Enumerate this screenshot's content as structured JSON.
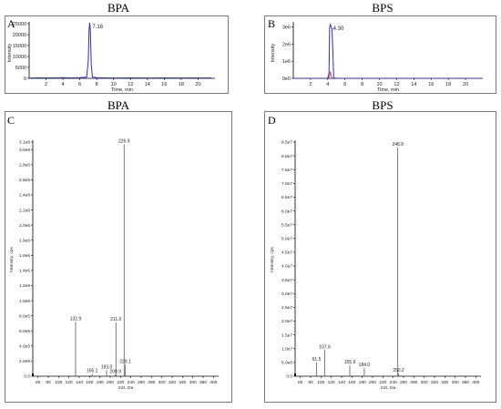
{
  "panels": {
    "A": {
      "letter": "A",
      "heading": "BPA"
    },
    "B": {
      "letter": "B",
      "heading": "BPS"
    },
    "C": {
      "letter": "C",
      "heading": "BPA"
    },
    "D": {
      "letter": "D",
      "heading": "BPS"
    }
  },
  "colors": {
    "trace": "#2b2bd6",
    "frame": "#7a7a7a",
    "axis": "#000000",
    "spectrum": "#444444"
  },
  "chart_data": [
    {
      "id": "A",
      "type": "line",
      "xlabel": "Time, min",
      "ylabel": "Intensity",
      "xlim": [
        0,
        22
      ],
      "ylim": [
        0,
        25000
      ],
      "xticks": [
        2,
        4,
        6,
        8,
        10,
        12,
        14,
        16,
        18,
        20
      ],
      "yticks": [
        0,
        5000,
        10000,
        15000,
        20000,
        25000
      ],
      "yticklabels": [
        "0",
        "5000",
        "10000",
        "15000",
        "20000",
        "25000"
      ],
      "peak_label": "7.16",
      "x": [
        0.0,
        1.0,
        2.0,
        3.0,
        4.0,
        5.0,
        6.0,
        6.8,
        7.0,
        7.1,
        7.16,
        7.25,
        7.35,
        7.5,
        8.0,
        9.0,
        10.0,
        12.0,
        14.0,
        16.0,
        18.0,
        20.0,
        21.0,
        21.6
      ],
      "y": [
        150,
        200,
        200,
        200,
        300,
        200,
        300,
        500,
        8000,
        22000,
        25400,
        22000,
        6000,
        600,
        300,
        200,
        150,
        200,
        150,
        200,
        150,
        200,
        150,
        200
      ]
    },
    {
      "id": "B",
      "type": "line",
      "xlabel": "Time, min",
      "ylabel": "Intensity",
      "xlim": [
        0,
        22
      ],
      "ylim": [
        0,
        3200000
      ],
      "xticks": [
        2,
        4,
        6,
        8,
        10,
        12,
        14,
        16,
        18,
        20
      ],
      "yticks": [
        0,
        1000000,
        2000000,
        3000000
      ],
      "yticklabels": [
        "0e0",
        "1e6",
        "2e6",
        "3e6"
      ],
      "peak_label": "4.30",
      "x": [
        0.0,
        1.0,
        2.0,
        3.0,
        4.0,
        4.15,
        4.22,
        4.3,
        4.4,
        4.5,
        4.7,
        5.0,
        6.0,
        8.0,
        10.0,
        12.0,
        14.0,
        16.0,
        18.0,
        20.0,
        21.6
      ],
      "y": [
        0,
        0,
        0,
        0,
        5000,
        300000,
        3000000,
        3150000,
        3000000,
        2900000,
        20000,
        5000,
        2000,
        0,
        0,
        0,
        0,
        0,
        0,
        0,
        0
      ],
      "secondary_trace": {
        "x": [
          4.0,
          4.2,
          4.3,
          4.4,
          4.6
        ],
        "y": [
          0,
          100000,
          400000,
          100000,
          0
        ]
      }
    },
    {
      "id": "C",
      "type": "bar",
      "xlabel": "m/z, Da",
      "ylabel": "Intensity, cps",
      "xlim": [
        50,
        410
      ],
      "ylim": [
        0,
        3100000
      ],
      "xticks": [
        60,
        80,
        100,
        120,
        140,
        160,
        180,
        200,
        220,
        240,
        260,
        280,
        300,
        320,
        340,
        360,
        380,
        400
      ],
      "yticks": [
        0,
        200000,
        400000,
        600000,
        800000,
        1000000,
        1200000,
        1400000,
        1600000,
        1800000,
        2000000,
        2200000,
        2400000,
        2600000,
        2800000,
        3000000,
        3100000
      ],
      "yticklabels": [
        "0.0",
        "2.0e5",
        "4.0e5",
        "6.0e5",
        "8.0e5",
        "1.0e6",
        "1.2e6",
        "1.4e6",
        "1.6e6",
        "1.8e6",
        "2.0e6",
        "2.2e6",
        "2.4e6",
        "2.6e6",
        "2.8e6",
        "3.0e6",
        "3.1e6"
      ],
      "peaks": [
        {
          "x": 132.9,
          "y": 720000,
          "label": "132.9"
        },
        {
          "x": 165.1,
          "y": 30000,
          "label": "165.1"
        },
        {
          "x": 193.0,
          "y": 80000,
          "label": "193.0"
        },
        {
          "x": 209.9,
          "y": 20000,
          "label": "209.9"
        },
        {
          "x": 211.0,
          "y": 710000,
          "label": "211.0"
        },
        {
          "x": 226.9,
          "y": 3070000,
          "label": "226.9"
        },
        {
          "x": 229.1,
          "y": 150000,
          "label": "229.1"
        }
      ]
    },
    {
      "id": "D",
      "type": "bar",
      "xlabel": "m/z, Da",
      "ylabel": "Intensity, cps",
      "xlim": [
        50,
        410
      ],
      "ylim": [
        0,
        85000000
      ],
      "xticks": [
        60,
        80,
        100,
        120,
        140,
        160,
        180,
        200,
        220,
        240,
        260,
        280,
        300,
        320,
        340,
        360,
        380,
        400
      ],
      "yticks": [
        0,
        5000000,
        10000000,
        15000000,
        20000000,
        25000000,
        30000000,
        35000000,
        40000000,
        45000000,
        50000000,
        55000000,
        60000000,
        65000000,
        70000000,
        75000000,
        80000000,
        85000000
      ],
      "yticklabels": [
        "0.0",
        "5.0e6",
        "1.0e7",
        "1.5e7",
        "2.0e7",
        "2.5e7",
        "3.0e7",
        "3.5e7",
        "4.0e7",
        "4.5e7",
        "5.0e7",
        "5.5e7",
        "6.0e7",
        "6.5e7",
        "7.0e7",
        "7.5e7",
        "8.0e7",
        "8.5e7"
      ],
      "peaks": [
        {
          "x": 91.5,
          "y": 5000000,
          "label": "91.5"
        },
        {
          "x": 107.6,
          "y": 9500000,
          "label": "107.6"
        },
        {
          "x": 155.9,
          "y": 4000000,
          "label": "155.9"
        },
        {
          "x": 184.0,
          "y": 3000000,
          "label": "184.0"
        },
        {
          "x": 248.9,
          "y": 83000000,
          "label": "248.9"
        },
        {
          "x": 250.2,
          "y": 1000000,
          "label": "250.2"
        }
      ]
    }
  ]
}
